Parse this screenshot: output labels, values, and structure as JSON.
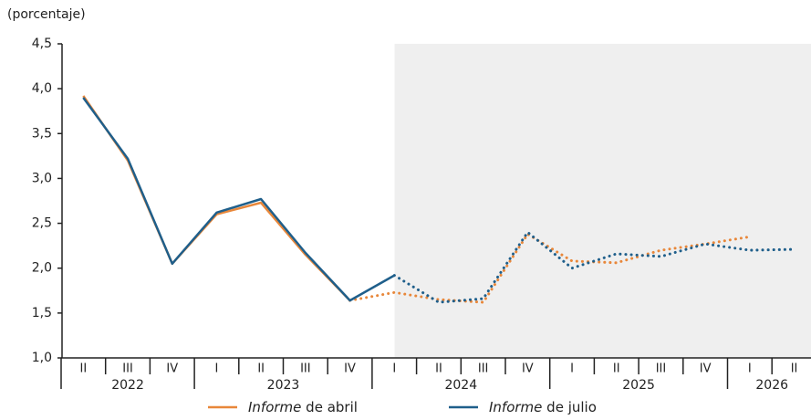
{
  "chart_data": {
    "type": "line",
    "y_label": "(porcentaje)",
    "categories": [
      "II",
      "III",
      "IV",
      "I",
      "II",
      "III",
      "IV",
      "I",
      "II",
      "III",
      "IV",
      "I",
      "II",
      "III",
      "IV",
      "I",
      "II"
    ],
    "groups": [
      {
        "name": "2022",
        "count": 3
      },
      {
        "name": "2023",
        "count": 4
      },
      {
        "name": "2024",
        "count": 4
      },
      {
        "name": "2025",
        "count": 4
      },
      {
        "name": "2026",
        "count": 2
      }
    ],
    "shaded_from": 8,
    "series": [
      {
        "name": "Informe de abril",
        "color": "#e8873a",
        "solid_until": 6,
        "values": [
          3.92,
          3.2,
          2.05,
          2.6,
          2.73,
          2.15,
          1.64,
          1.73,
          1.65,
          1.62,
          2.38,
          2.08,
          2.06,
          2.2,
          2.27,
          2.35,
          null
        ]
      },
      {
        "name": "Informe de julio",
        "color": "#1f5f8b",
        "solid_until": 7,
        "values": [
          3.9,
          3.22,
          2.05,
          2.62,
          2.77,
          2.17,
          1.64,
          1.92,
          1.62,
          1.66,
          2.4,
          2.0,
          2.16,
          2.13,
          2.27,
          2.2,
          2.21
        ]
      }
    ],
    "ylim": [
      1,
      4.5
    ],
    "yticks": [
      {
        "value": 1,
        "label": "1,0"
      },
      {
        "value": 1.5,
        "label": "1,5"
      },
      {
        "value": 2,
        "label": "2,0"
      },
      {
        "value": 2.5,
        "label": "2,5"
      },
      {
        "value": 3,
        "label": "3,0"
      },
      {
        "value": 3.5,
        "label": "3,5"
      },
      {
        "value": 4,
        "label": "4,0"
      },
      {
        "value": 4.5,
        "label": "4,5"
      }
    ],
    "grid": false
  }
}
